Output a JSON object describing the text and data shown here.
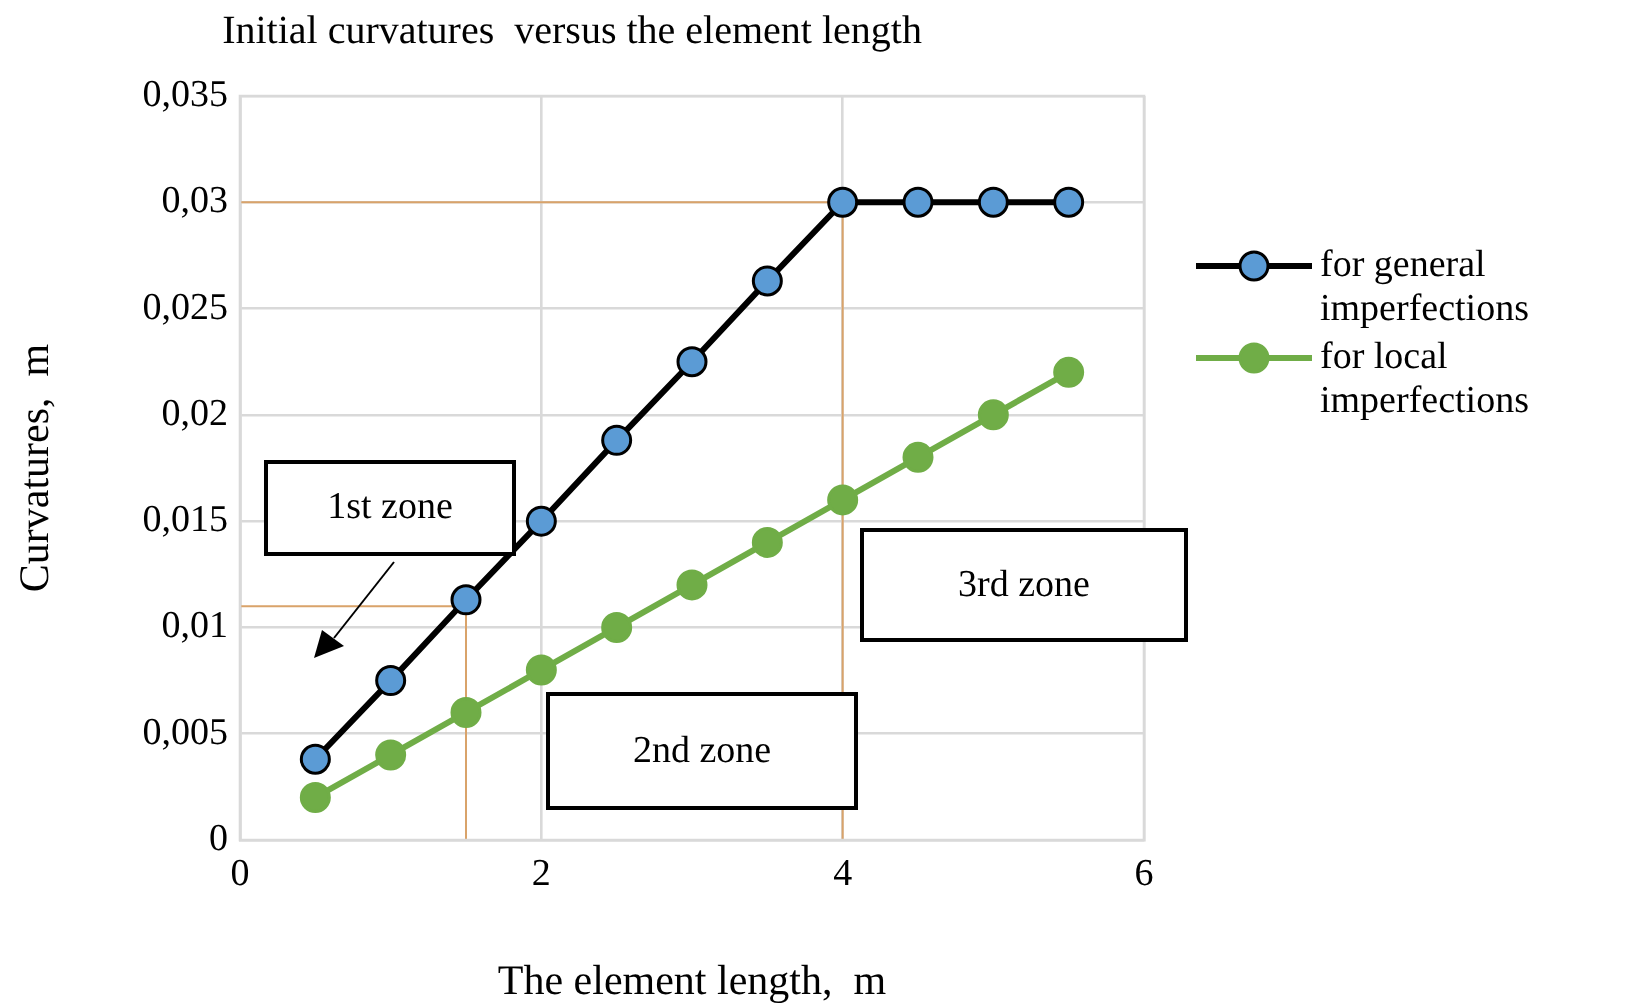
{
  "chart_data": {
    "type": "line",
    "title": "Initial curvatures  versus the element length",
    "xlabel": "The element length,  m",
    "ylabel": "Curvatures,  m",
    "xlim": [
      0,
      6
    ],
    "xticks": [
      0,
      2,
      4,
      6
    ],
    "ylim": [
      0,
      0.035
    ],
    "yticks": [
      {
        "value": 0,
        "label": "0"
      },
      {
        "value": 0.005,
        "label": "0,005"
      },
      {
        "value": 0.01,
        "label": "0,01"
      },
      {
        "value": 0.015,
        "label": "0,015"
      },
      {
        "value": 0.02,
        "label": "0,02"
      },
      {
        "value": 0.025,
        "label": "0,025"
      },
      {
        "value": 0.03,
        "label": "0,03"
      },
      {
        "value": 0.035,
        "label": "0,035"
      }
    ],
    "grid": true,
    "legend": "right",
    "marker": "circle",
    "x": [
      0.5,
      1,
      1.5,
      2,
      2.5,
      3,
      3.5,
      4,
      4.5,
      5,
      5.5
    ],
    "series": [
      {
        "name": "for general imperfections",
        "color": "#5b9bd5",
        "values": [
          0.0038,
          0.0075,
          0.0113,
          0.015,
          0.0188,
          0.0225,
          0.0263,
          0.03,
          0.03,
          0.03,
          0.03
        ]
      },
      {
        "name": "for local imperfections",
        "color": "#70ad47",
        "values": [
          0.002,
          0.004,
          0.006,
          0.008,
          0.01,
          0.012,
          0.014,
          0.016,
          0.018,
          0.02,
          0.022
        ]
      },
      {
        "type": "line",
        "marker": "none",
        "color": "#d9a36a",
        "x": [
          0,
          4,
          4
        ],
        "values": [
          0.03,
          0.03,
          0
        ]
      },
      {
        "type": "line",
        "marker": "none",
        "color": "#d9a36a",
        "x": [
          0,
          1.5,
          1.5
        ],
        "values": [
          0.011,
          0.011,
          0
        ]
      }
    ],
    "annotations": [
      "1st zone",
      "2nd zone",
      "3rd zone"
    ]
  }
}
